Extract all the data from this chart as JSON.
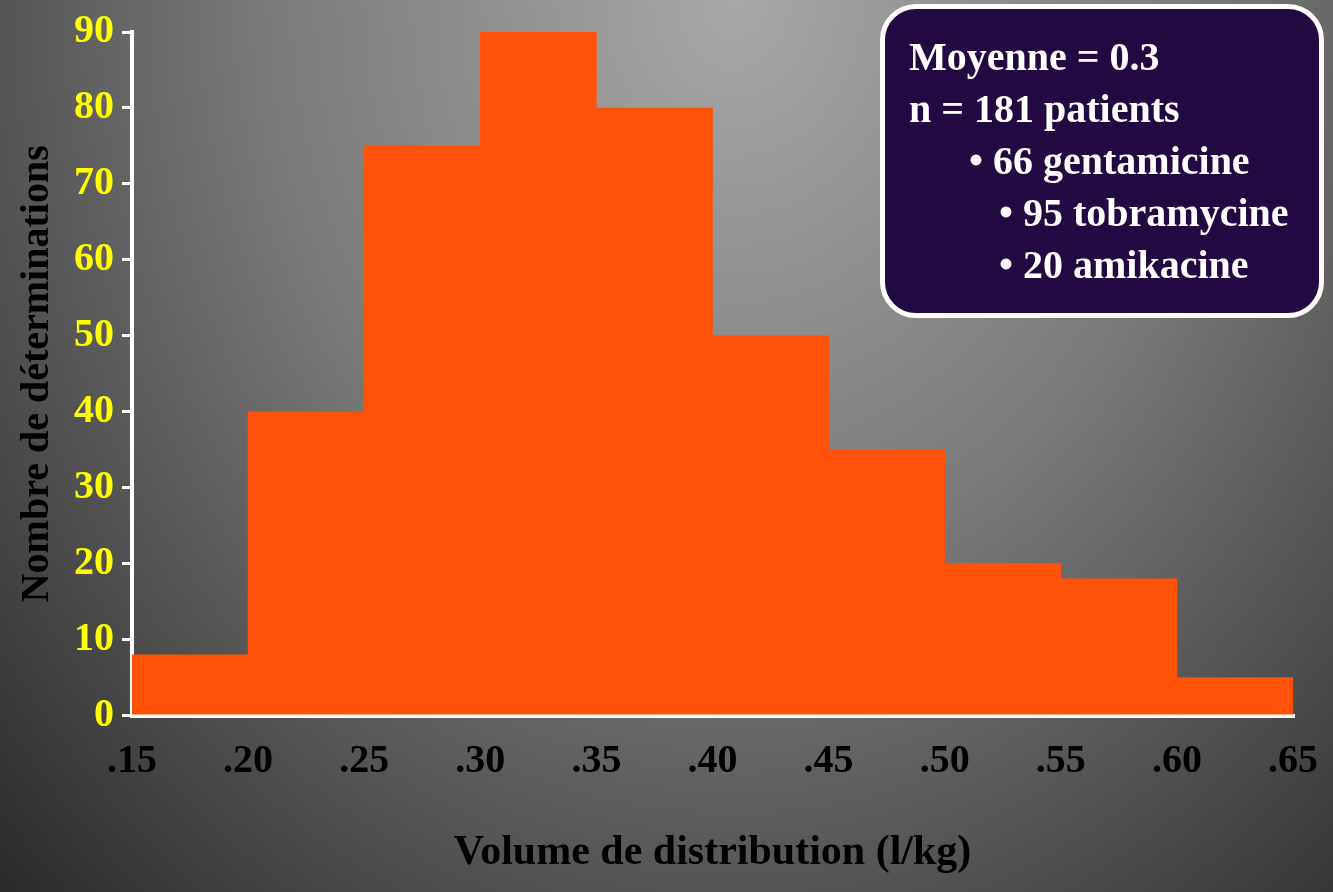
{
  "chart_data": {
    "type": "histogram",
    "xlabel": "Volume de distribution (l/kg)",
    "ylabel": "Nombre de déterminations",
    "bins": [
      0.15,
      0.2,
      0.25,
      0.3,
      0.35,
      0.4,
      0.45,
      0.5,
      0.55,
      0.6,
      0.65
    ],
    "values": [
      8,
      40,
      75,
      90,
      80,
      50,
      35,
      20,
      18,
      5
    ],
    "color": "#ff5208",
    "xlim": [
      0.15,
      0.65
    ],
    "xticks": [
      {
        "value": 0.15,
        "label": ".15"
      },
      {
        "value": 0.2,
        "label": ".20"
      },
      {
        "value": 0.25,
        "label": ".25"
      },
      {
        "value": 0.3,
        "label": ".30"
      },
      {
        "value": 0.35,
        "label": ".35"
      },
      {
        "value": 0.4,
        "label": ".40"
      },
      {
        "value": 0.45,
        "label": ".45"
      },
      {
        "value": 0.5,
        "label": ".50"
      },
      {
        "value": 0.55,
        "label": ".55"
      },
      {
        "value": 0.6,
        "label": ".60"
      },
      {
        "value": 0.65,
        "label": ".65"
      }
    ],
    "ylim": [
      0,
      90
    ],
    "yticks": [
      0,
      10,
      20,
      30,
      40,
      50,
      60,
      70,
      80,
      90
    ],
    "grid": false,
    "legend": false,
    "annotations": [
      "Moyenne = 0.3",
      "n = 181 patients",
      "• 66 gentamicine",
      "• 95 tobramycine",
      "• 20 amikacine"
    ]
  }
}
